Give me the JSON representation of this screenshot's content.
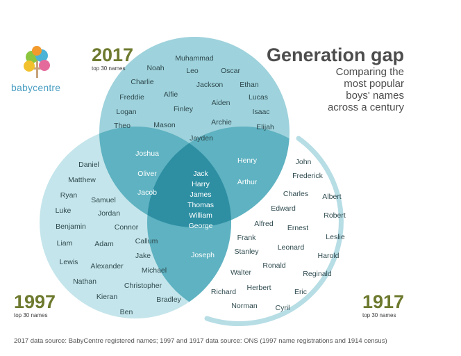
{
  "brand": {
    "logo_text": "babycentre"
  },
  "title": "Generation gap",
  "subtitle": [
    "Comparing the",
    "most popular",
    "boys' names",
    "across a century"
  ],
  "sets": {
    "y2017": {
      "year": "2017",
      "label": "top 30 names"
    },
    "y1997": {
      "year": "1997",
      "label": "top 30 names"
    },
    "y1917": {
      "year": "1917",
      "label": "top 30 names"
    }
  },
  "regions": {
    "only_2017": [
      "Muhammad",
      "Noah",
      "Leo",
      "Oscar",
      "Charlie",
      "Jackson",
      "Ethan",
      "Alfie",
      "Freddie",
      "Lucas",
      "Logan",
      "Finley",
      "Aiden",
      "Isaac",
      "Theo",
      "Mason",
      "Archie",
      "Elijah",
      "Jayden"
    ],
    "y2017_y1997": [
      "Joshua",
      "Oliver",
      "Jacob"
    ],
    "y2017_y1917": [
      "Henry",
      "Arthur"
    ],
    "all_three": [
      "Jack",
      "Harry",
      "James",
      "Thomas",
      "William",
      "George"
    ],
    "y1997_y1917": [
      "Joseph"
    ],
    "only_1997": [
      "Daniel",
      "Matthew",
      "Ryan",
      "Samuel",
      "Luke",
      "Jordan",
      "Benjamin",
      "Connor",
      "Liam",
      "Adam",
      "Callum",
      "Lewis",
      "Alexander",
      "Jake",
      "Michael",
      "Nathan",
      "Christopher",
      "Kieran",
      "Bradley",
      "Ben"
    ],
    "only_1917": [
      "John",
      "Frederick",
      "Charles",
      "Albert",
      "Edward",
      "Robert",
      "Alfred",
      "Ernest",
      "Frank",
      "Leslie",
      "Stanley",
      "Leonard",
      "Harold",
      "Ronald",
      "Walter",
      "Reginald",
      "Herbert",
      "Eric",
      "Richard",
      "Norman",
      "Cyril"
    ]
  },
  "colors": {
    "circle_2017": "#9ed2dc",
    "circle_1997": "#c4e5eb",
    "arc_1917": "#b7dde5",
    "overlap_two": "#5eb2c1",
    "overlap_all": "#2e8fa3",
    "name_dark": "#2f4a4f",
    "name_light": "#ffffff",
    "year_color": "#6d7a2e"
  },
  "footnote": "2017 data source: BabyCentre registered names; 1997 and 1917 data source: ONS (1997 name registrations and 1914 census)"
}
